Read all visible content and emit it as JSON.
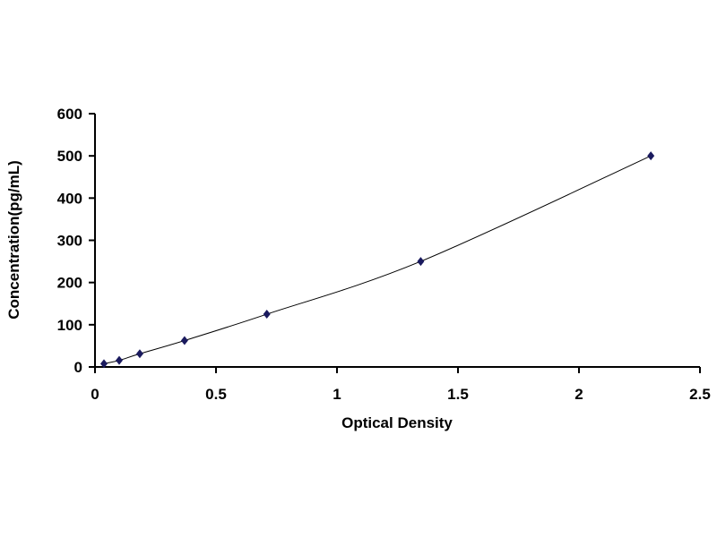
{
  "chart_data": {
    "type": "scatter",
    "title": "",
    "xlabel": "Optical Density",
    "ylabel": "Concentration(pg/mL)",
    "xlim": [
      0,
      2.5
    ],
    "ylim": [
      0,
      600
    ],
    "xticks": [
      "0",
      "0.5",
      "1",
      "1.5",
      "2",
      "2.5"
    ],
    "yticks": [
      "0",
      "100",
      "200",
      "300",
      "400",
      "500",
      "600"
    ],
    "grid": false,
    "legend": "none",
    "marker": "diamond",
    "series_color": "#1a1a5e",
    "line_color": "#000000",
    "fit_line": "smooth curve",
    "points": [
      {
        "x": 0.037,
        "y": 7.81
      },
      {
        "x": 0.1,
        "y": 15.63
      },
      {
        "x": 0.185,
        "y": 31.25
      },
      {
        "x": 0.37,
        "y": 62.5
      },
      {
        "x": 0.71,
        "y": 125
      },
      {
        "x": 1.346,
        "y": 250
      },
      {
        "x": 2.297,
        "y": 500
      }
    ]
  }
}
